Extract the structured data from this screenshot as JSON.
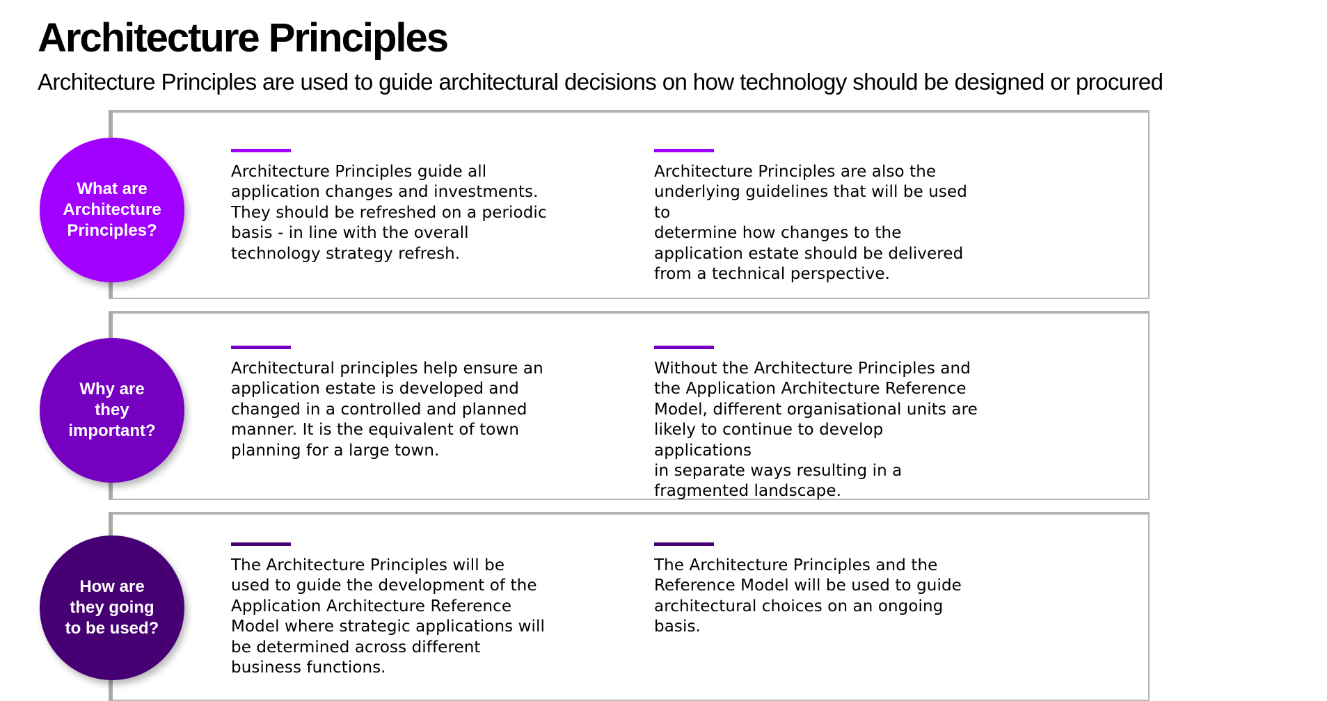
{
  "title": "Architecture Principles",
  "subtitle": "Architecture Principles are used to guide architectural decisions on how technology should be designed or procured",
  "sections": [
    {
      "question": "What are\nArchitecture\nPrinciples?",
      "color": "#a100ff",
      "left_text": "Architecture Principles guide all\napplication changes and investments.\nThey should be refreshed on a periodic\nbasis  - in line with the overall\ntechnology strategy refresh.",
      "right_text": "Architecture Principles are also the\nunderlying guidelines that will be used to\ndetermine how changes to the\napplication estate should be delivered\nfrom a technical perspective."
    },
    {
      "question": "Why are\nthey\nimportant?",
      "color": "#7500c0",
      "left_text": "Architectural principles help ensure an\napplication estate is developed and\nchanged in a controlled and planned\nmanner. It is the equivalent of town\nplanning for a large town.",
      "right_text": "Without the Architecture Principles and\nthe Application Architecture Reference\nModel, different organisational units are\nlikely to continue to develop applications\nin separate ways resulting in a\nfragmented landscape."
    },
    {
      "question": "How are\nthey going\nto be used?",
      "color": "#460073",
      "left_text": "The Architecture Principles will be\nused to guide the development of the\nApplication Architecture Reference\nModel where strategic applications will\nbe determined across different\nbusiness functions.",
      "right_text": "The Architecture Principles and the\nReference Model will be used to guide\narchitectural choices on an ongoing\nbasis."
    }
  ]
}
